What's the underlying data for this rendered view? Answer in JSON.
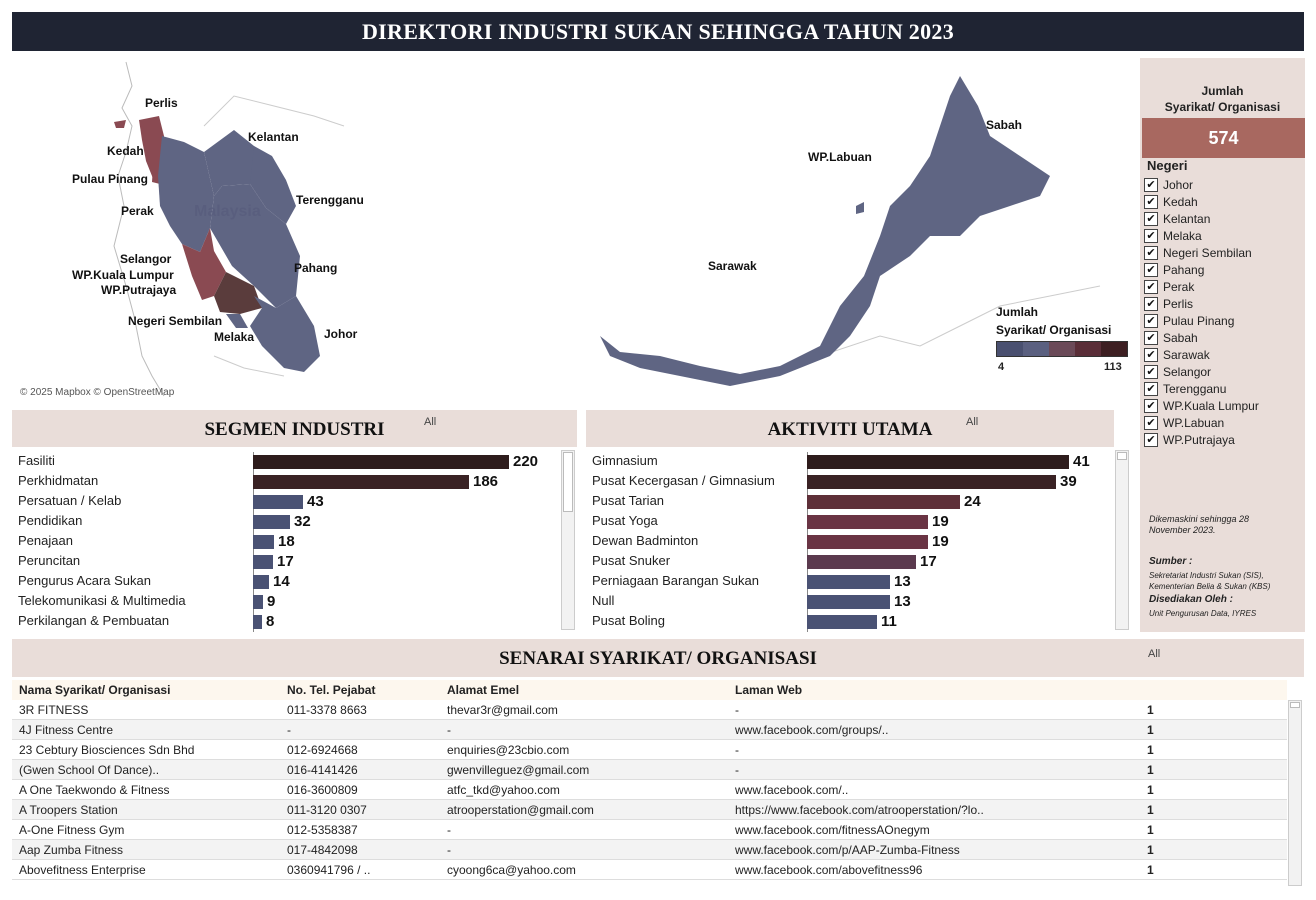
{
  "header": {
    "title": "DIREKTORI INDUSTRI SUKAN SEHINGGA TAHUN 2023"
  },
  "map": {
    "attribution": "© 2025 Mapbox © OpenStreetMap",
    "watermark": "Malaysia",
    "labels": [
      "Perlis",
      "Kedah",
      "Pulau Pinang",
      "Perak",
      "Kelantan",
      "Terengganu",
      "Selangor",
      "WP.Kuala Lumpur",
      "WP.Putrajaya",
      "Pahang",
      "Negeri Sembilan",
      "Melaka",
      "Johor",
      "Sabah",
      "WP.Labuan",
      "Sarawak"
    ],
    "legend": {
      "title_line1": "Jumlah",
      "title_line2": "Syarikat/ Organisasi",
      "min": "4",
      "max": "113",
      "colors": [
        "#4a5070",
        "#5b6080",
        "#6b4a58",
        "#5a2e38",
        "#3d1f22"
      ]
    },
    "colors": {
      "low": "#5f6583",
      "mid": "#8a4a52",
      "high": "#5a3c3c"
    }
  },
  "summary": {
    "total_title_line1": "Jumlah",
    "total_title_line2": "Syarikat/ Organisasi",
    "total_value": "574",
    "negeri_title": "Negeri",
    "negeri": [
      "Johor",
      "Kedah",
      "Kelantan",
      "Melaka",
      "Negeri Sembilan",
      "Pahang",
      "Perak",
      "Perlis",
      "Pulau Pinang",
      "Sabah",
      "Sarawak",
      "Selangor",
      "Terengganu",
      "WP.Kuala Lumpur",
      "WP.Labuan",
      "WP.Putrajaya"
    ],
    "check": "✔",
    "updated": "Dikemaskini sehingga 28 November 2023.",
    "sumber_label": "Sumber :",
    "sumber_text": "Sekretariat Industri Sukan (SIS), Kementerian Belia & Sukan (KBS)",
    "disediakan_label": "Disediakan Oleh :",
    "disediakan_text": "Unit Pengurusan Data, IYRES"
  },
  "segmen": {
    "title": "SEGMEN INDUSTRI",
    "filter": "All",
    "chart_data": {
      "type": "bar",
      "categories": [
        "Fasiliti",
        "Perkhidmatan",
        "Persatuan / Kelab",
        "Pendidikan",
        "Penajaan",
        "Peruncitan",
        "Pengurus Acara Sukan",
        "Telekomunikasi & Multimedia",
        "Perkilangan & Pembuatan"
      ],
      "values": [
        220,
        186,
        43,
        32,
        18,
        17,
        14,
        9,
        8
      ],
      "colors": [
        "#2e1c1c",
        "#3a2224",
        "#4a5274",
        "#4a5274",
        "#4a5274",
        "#4a5274",
        "#4a5274",
        "#4a5274",
        "#4a5274"
      ]
    }
  },
  "aktiviti": {
    "title": "AKTIVITI UTAMA",
    "filter": "All",
    "chart_data": {
      "type": "bar",
      "categories": [
        "Gimnasium",
        "Pusat Kecergasan / Gimnasium",
        "Pusat Tarian",
        "Pusat Yoga",
        "Dewan Badminton",
        "Pusat Snuker",
        "Perniagaan Barangan Sukan",
        "Null",
        "Pusat Boling"
      ],
      "values": [
        41,
        39,
        24,
        19,
        19,
        17,
        13,
        13,
        11
      ],
      "colors": [
        "#2e1c1c",
        "#3a2224",
        "#5e2f38",
        "#6a3444",
        "#6a3444",
        "#5b3a4e",
        "#4a5274",
        "#4a5274",
        "#4a5274"
      ]
    }
  },
  "senarai": {
    "title": "SENARAI SYARIKAT/ ORGANISASI",
    "filter": "All",
    "columns": [
      "Nama Syarikat/ Organisasi",
      "No. Tel. Pejabat",
      "Alamat Emel",
      "Laman Web"
    ],
    "rows": [
      [
        "3R FITNESS",
        "011-3378 8663",
        "thevar3r@gmail.com",
        "-",
        "1"
      ],
      [
        "4J Fitness Centre",
        "-",
        "-",
        "www.facebook.com/groups/..",
        "1"
      ],
      [
        "23 Cebtury Biosciences Sdn Bhd",
        "012-6924668",
        "enquiries@23cbio.com",
        "-",
        "1"
      ],
      [
        "(Gwen School Of Dance)..",
        "016-4141426",
        "gwenvilleguez@gmail.com",
        "-",
        "1"
      ],
      [
        "A One Taekwondo & Fitness",
        "016-3600809",
        "atfc_tkd@yahoo.com",
        "www.facebook.com/..",
        "1"
      ],
      [
        "A Troopers Station",
        "011-3120 0307",
        "atrooperstation@gmail.com",
        "https://www.facebook.com/atrooperstation/?lo..",
        "1"
      ],
      [
        "A-One Fitness Gym",
        "012-5358387",
        "-",
        "www.facebook.com/fitnessAOnegym",
        "1"
      ],
      [
        "Aap Zumba Fitness",
        "017-4842098",
        "-",
        "www.facebook.com/p/AAP-Zumba-Fitness",
        "1"
      ],
      [
        "Abovefitness Enterprise",
        "0360941796 / ..",
        "cyoong6ca@yahoo.com",
        "www.facebook.com/abovefitness96",
        "1"
      ]
    ]
  }
}
